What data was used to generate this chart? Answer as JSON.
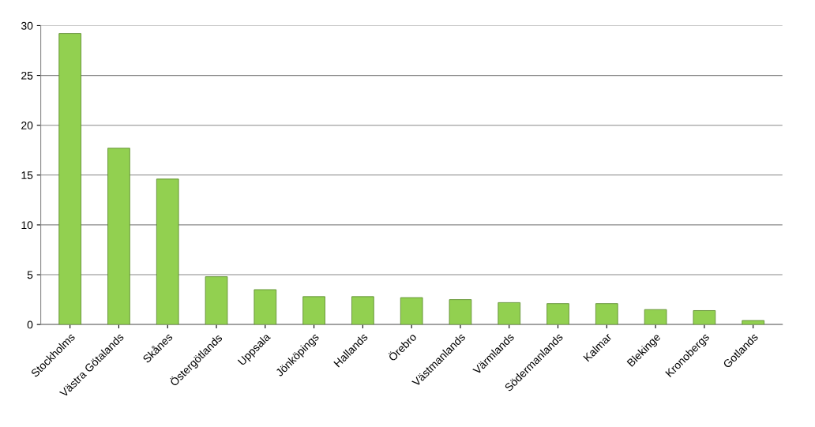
{
  "chart_data": {
    "type": "bar",
    "categories": [
      "Stockholms",
      "Västra Götalands",
      "Skånes",
      "Östergötlands",
      "Uppsala",
      "Jönköpings",
      "Hallands",
      "Örebro",
      "Västmanlands",
      "Värmlands",
      "Södermanlands",
      "Kalmar",
      "Blekinge",
      "Kronobergs",
      "Gotlands"
    ],
    "values": [
      29.2,
      17.7,
      14.6,
      4.8,
      3.5,
      2.8,
      2.8,
      2.7,
      2.5,
      2.2,
      2.1,
      2.1,
      1.5,
      1.4,
      0.4
    ],
    "color": "#92d050",
    "ylim": [
      0,
      30
    ],
    "yticks": [
      0,
      5,
      10,
      15,
      20,
      25,
      30
    ],
    "grid": "y",
    "legend": false
  }
}
